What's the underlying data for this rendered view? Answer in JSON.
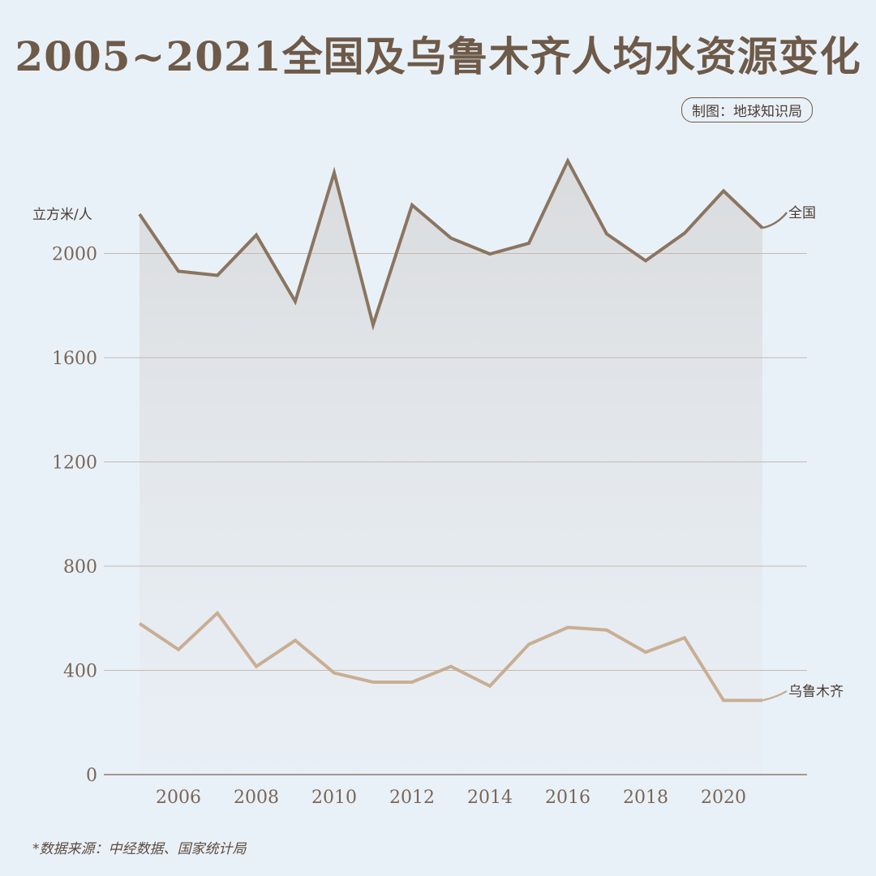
{
  "title": "2005~2021全国及乌鲁木齐人均水资源变化",
  "credit": "制图：地球知识局",
  "source": "*数据来源：中经数据、国家统计局",
  "chart_data": {
    "type": "line",
    "title": "2005~2021全国及乌鲁木齐人均水资源变化",
    "ylabel": "立方米/人",
    "xlabel": "",
    "x": [
      2005,
      2006,
      2007,
      2008,
      2009,
      2010,
      2011,
      2012,
      2013,
      2014,
      2015,
      2016,
      2017,
      2018,
      2019,
      2020,
      2021
    ],
    "xticks": [
      2006,
      2008,
      2010,
      2012,
      2014,
      2016,
      2018,
      2020
    ],
    "yticks": [
      0,
      400,
      800,
      1200,
      1600,
      2000
    ],
    "ylim": [
      0,
      2400
    ],
    "grid": true,
    "series": [
      {
        "name": "全国",
        "color": "#8b7560",
        "values": [
          2151,
          1932,
          1916,
          2071,
          1816,
          2310,
          1726,
          2186,
          2059,
          1998,
          2039,
          2355,
          2075,
          1972,
          2078,
          2240,
          2098
        ]
      },
      {
        "name": "乌鲁木齐",
        "color": "#c9ae94",
        "values": [
          580,
          480,
          620,
          415,
          515,
          390,
          355,
          355,
          415,
          340,
          500,
          565,
          555,
          470,
          525,
          285,
          285
        ]
      }
    ]
  }
}
